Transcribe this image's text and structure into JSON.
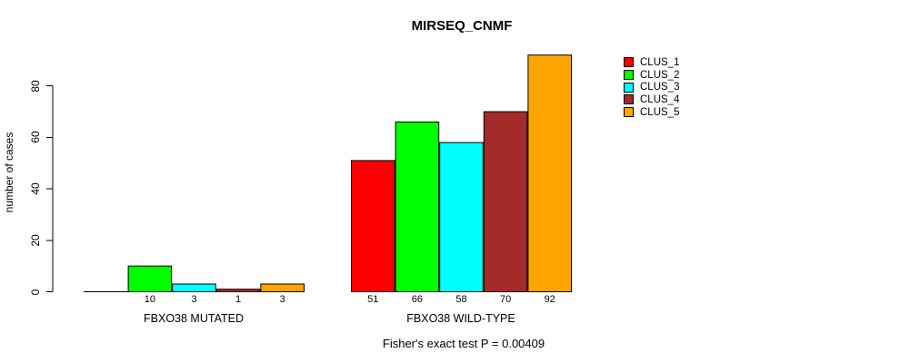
{
  "chart_data": {
    "type": "bar",
    "title": "MIRSEQ_CNMF",
    "ylabel": "number of cases",
    "xlabel": "",
    "ylim": [
      0,
      92
    ],
    "yticks": [
      0,
      20,
      40,
      60,
      80
    ],
    "grid": false,
    "legend_position": "right",
    "legend": [
      "CLUS_1",
      "CLUS_2",
      "CLUS_3",
      "CLUS_4",
      "CLUS_5"
    ],
    "colors": [
      "#ff0000",
      "#00ff00",
      "#00ffff",
      "#a52a2a",
      "#ffa500"
    ],
    "groups": [
      {
        "label": "FBXO38 MUTATED",
        "values": [
          0,
          10,
          3,
          1,
          3
        ],
        "bar_labels": [
          "",
          "10",
          "3",
          "1",
          "3"
        ]
      },
      {
        "label": "FBXO38 WILD-TYPE",
        "values": [
          51,
          66,
          58,
          70,
          92
        ],
        "bar_labels": [
          "51",
          "66",
          "58",
          "70",
          "92"
        ]
      }
    ],
    "annotation": "Fisher's exact test P = 0.00409"
  }
}
